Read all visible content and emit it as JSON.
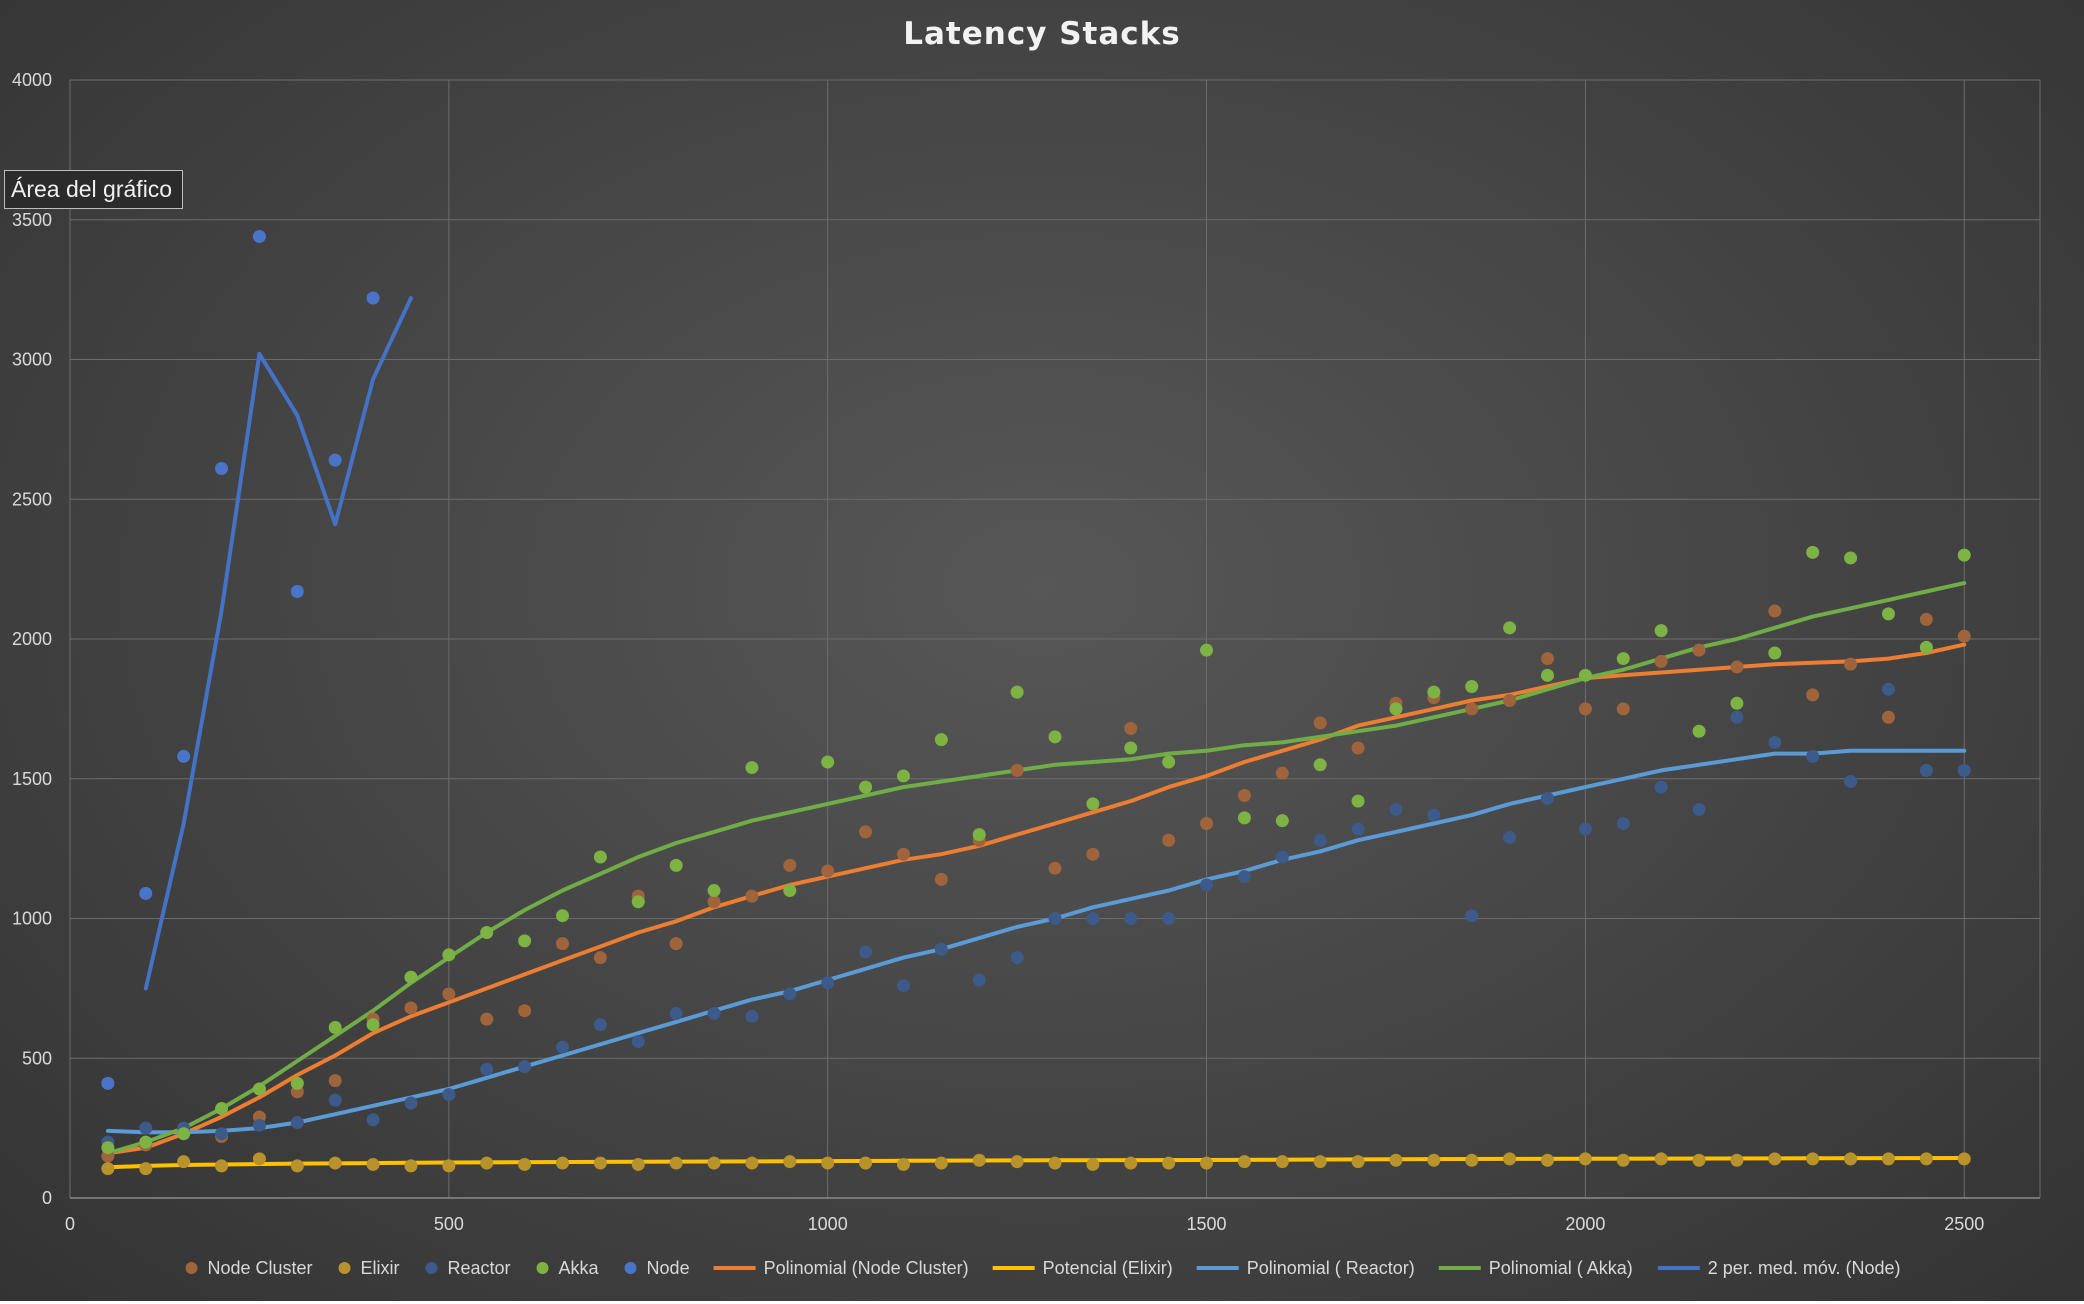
{
  "tooltip": {
    "text": "Área del gráfico"
  },
  "chart_data": {
    "type": "scatter",
    "title": "Latency  Stacks",
    "xlabel": "",
    "ylabel": "",
    "xlim": [
      0,
      2600
    ],
    "ylim": [
      0,
      4000
    ],
    "xticks": [
      0,
      500,
      1000,
      1500,
      2000,
      2500
    ],
    "yticks": [
      0,
      500,
      1000,
      1500,
      2000,
      2500,
      3000,
      3500,
      4000
    ],
    "grid": true,
    "legend_position": "bottom",
    "series": [
      {
        "name": "Node Cluster",
        "kind": "scatter",
        "color": "#a0643c",
        "x": [
          50,
          100,
          150,
          200,
          250,
          300,
          350,
          400,
          450,
          500,
          550,
          600,
          650,
          700,
          750,
          800,
          850,
          900,
          950,
          1000,
          1050,
          1100,
          1150,
          1200,
          1250,
          1300,
          1350,
          1400,
          1450,
          1500,
          1550,
          1600,
          1650,
          1700,
          1750,
          1800,
          1850,
          1900,
          1950,
          2000,
          2050,
          2100,
          2150,
          2200,
          2250,
          2300,
          2350,
          2400,
          2450,
          2500
        ],
        "y": [
          150,
          190,
          230,
          220,
          290,
          380,
          420,
          640,
          680,
          730,
          640,
          670,
          910,
          860,
          1080,
          910,
          1060,
          1080,
          1190,
          1170,
          1310,
          1230,
          1140,
          1280,
          1530,
          1180,
          1230,
          1680,
          1280,
          1340,
          1440,
          1520,
          1700,
          1610,
          1770,
          1790,
          1750,
          1780,
          1930,
          1750,
          1750,
          1920,
          1960,
          1900,
          2100,
          1800,
          1910,
          1720,
          2070,
          2010
        ]
      },
      {
        "name": "Elixir",
        "kind": "scatter",
        "color": "#b8922a",
        "x": [
          50,
          100,
          150,
          200,
          250,
          300,
          350,
          400,
          450,
          500,
          550,
          600,
          650,
          700,
          750,
          800,
          850,
          900,
          950,
          1000,
          1050,
          1100,
          1150,
          1200,
          1250,
          1300,
          1350,
          1400,
          1450,
          1500,
          1550,
          1600,
          1650,
          1700,
          1750,
          1800,
          1850,
          1900,
          1950,
          2000,
          2050,
          2100,
          2150,
          2200,
          2250,
          2300,
          2350,
          2400,
          2450,
          2500
        ],
        "y": [
          105,
          105,
          130,
          115,
          140,
          115,
          125,
          120,
          115,
          115,
          125,
          120,
          125,
          125,
          120,
          125,
          125,
          125,
          130,
          125,
          125,
          120,
          125,
          135,
          130,
          125,
          120,
          125,
          125,
          125,
          130,
          130,
          130,
          130,
          135,
          135,
          135,
          140,
          135,
          140,
          135,
          140,
          135,
          135,
          140,
          140,
          140,
          140,
          140,
          140
        ]
      },
      {
        "name": "Reactor",
        "kind": "scatter",
        "color": "#3c5a8a",
        "x": [
          50,
          100,
          150,
          200,
          250,
          300,
          350,
          400,
          450,
          500,
          550,
          600,
          650,
          700,
          750,
          800,
          850,
          900,
          950,
          1000,
          1050,
          1100,
          1150,
          1200,
          1250,
          1300,
          1350,
          1400,
          1450,
          1500,
          1550,
          1600,
          1650,
          1700,
          1750,
          1800,
          1850,
          1900,
          1950,
          2000,
          2050,
          2100,
          2150,
          2200,
          2250,
          2300,
          2350,
          2400,
          2450,
          2500
        ],
        "y": [
          200,
          250,
          250,
          230,
          260,
          270,
          350,
          280,
          340,
          370,
          460,
          470,
          540,
          620,
          560,
          660,
          660,
          650,
          730,
          770,
          880,
          760,
          890,
          780,
          860,
          1000,
          1000,
          1000,
          1000,
          1120,
          1150,
          1220,
          1280,
          1320,
          1390,
          1370,
          1010,
          1290,
          1430,
          1320,
          1340,
          1470,
          1390,
          1720,
          1630,
          1580,
          1490,
          1820,
          1530,
          1530
        ]
      },
      {
        "name": "Akka",
        "kind": "scatter",
        "color": "#7cb342",
        "x": [
          50,
          100,
          150,
          200,
          250,
          300,
          350,
          400,
          450,
          500,
          550,
          600,
          650,
          700,
          750,
          800,
          850,
          900,
          950,
          1000,
          1050,
          1100,
          1150,
          1200,
          1250,
          1300,
          1350,
          1400,
          1450,
          1500,
          1550,
          1600,
          1650,
          1700,
          1750,
          1800,
          1850,
          1900,
          1950,
          2000,
          2050,
          2100,
          2150,
          2200,
          2250,
          2300,
          2350,
          2400,
          2450,
          2500
        ],
        "y": [
          180,
          200,
          230,
          320,
          390,
          410,
          610,
          620,
          790,
          870,
          950,
          920,
          1010,
          1220,
          1060,
          1190,
          1100,
          1540,
          1100,
          1560,
          1470,
          1510,
          1640,
          1300,
          1810,
          1650,
          1410,
          1610,
          1560,
          1960,
          1360,
          1350,
          1550,
          1420,
          1750,
          1810,
          1830,
          2040,
          1870,
          1870,
          1930,
          2030,
          1670,
          1770,
          1950,
          2310,
          2290,
          2090,
          1970,
          2300
        ]
      },
      {
        "name": "Node",
        "kind": "scatter",
        "color": "#4a74c9",
        "x": [
          50,
          100,
          150,
          200,
          250,
          300,
          350,
          400
        ],
        "y": [
          410,
          1090,
          1580,
          2610,
          3440,
          2170,
          2640,
          3220
        ]
      },
      {
        "name": "Polinomial (Node Cluster)",
        "kind": "line",
        "color": "#ed7d31",
        "x": [
          50,
          100,
          150,
          200,
          250,
          300,
          350,
          400,
          450,
          500,
          550,
          600,
          650,
          700,
          750,
          800,
          850,
          900,
          950,
          1000,
          1050,
          1100,
          1150,
          1200,
          1250,
          1300,
          1350,
          1400,
          1450,
          1500,
          1550,
          1600,
          1650,
          1700,
          1750,
          1800,
          1850,
          1900,
          1950,
          2000,
          2050,
          2100,
          2150,
          2200,
          2250,
          2300,
          2350,
          2400,
          2450,
          2500
        ],
        "y": [
          160,
          180,
          230,
          290,
          360,
          440,
          510,
          590,
          650,
          700,
          750,
          800,
          850,
          900,
          950,
          990,
          1040,
          1080,
          1120,
          1150,
          1180,
          1210,
          1230,
          1260,
          1300,
          1340,
          1380,
          1420,
          1470,
          1510,
          1560,
          1600,
          1640,
          1690,
          1720,
          1750,
          1780,
          1800,
          1830,
          1860,
          1870,
          1880,
          1890,
          1900,
          1910,
          1915,
          1920,
          1930,
          1950,
          1980
        ]
      },
      {
        "name": "Potencial (Elixir)",
        "kind": "line",
        "color": "#ffc000",
        "x": [
          50,
          100,
          150,
          200,
          300,
          400,
          500,
          700,
          900,
          1100,
          1300,
          1500,
          1700,
          1900,
          2100,
          2300,
          2500
        ],
        "y": [
          110,
          115,
          118,
          120,
          123,
          125,
          127,
          129,
          131,
          133,
          135,
          136,
          138,
          140,
          141,
          142,
          143
        ]
      },
      {
        "name": "Polinomial ( Reactor)",
        "kind": "line",
        "color": "#5b9bd5",
        "x": [
          50,
          100,
          150,
          200,
          250,
          300,
          350,
          400,
          450,
          500,
          550,
          600,
          650,
          700,
          750,
          800,
          850,
          900,
          950,
          1000,
          1050,
          1100,
          1150,
          1200,
          1250,
          1300,
          1350,
          1400,
          1450,
          1500,
          1550,
          1600,
          1650,
          1700,
          1750,
          1800,
          1850,
          1900,
          1950,
          2000,
          2050,
          2100,
          2150,
          2200,
          2250,
          2300,
          2350,
          2400,
          2450,
          2500
        ],
        "y": [
          240,
          235,
          235,
          240,
          250,
          270,
          300,
          330,
          360,
          390,
          430,
          470,
          510,
          550,
          590,
          630,
          670,
          710,
          740,
          780,
          820,
          860,
          890,
          930,
          970,
          1000,
          1040,
          1070,
          1100,
          1140,
          1170,
          1210,
          1240,
          1280,
          1310,
          1340,
          1370,
          1410,
          1440,
          1470,
          1500,
          1530,
          1550,
          1570,
          1590,
          1590,
          1600,
          1600,
          1600,
          1600
        ]
      },
      {
        "name": "Polinomial ( Akka)",
        "kind": "line",
        "color": "#70ad47",
        "x": [
          50,
          100,
          150,
          200,
          250,
          300,
          350,
          400,
          450,
          500,
          550,
          600,
          650,
          700,
          750,
          800,
          850,
          900,
          950,
          1000,
          1050,
          1100,
          1150,
          1200,
          1250,
          1300,
          1350,
          1400,
          1450,
          1500,
          1550,
          1600,
          1650,
          1700,
          1750,
          1800,
          1850,
          1900,
          1950,
          2000,
          2050,
          2100,
          2150,
          2200,
          2250,
          2300,
          2350,
          2400,
          2450,
          2500
        ],
        "y": [
          160,
          200,
          250,
          320,
          400,
          490,
          580,
          670,
          770,
          860,
          950,
          1030,
          1100,
          1160,
          1220,
          1270,
          1310,
          1350,
          1380,
          1410,
          1440,
          1470,
          1490,
          1510,
          1530,
          1550,
          1560,
          1570,
          1590,
          1600,
          1620,
          1630,
          1650,
          1670,
          1690,
          1720,
          1750,
          1780,
          1820,
          1860,
          1890,
          1930,
          1970,
          2000,
          2040,
          2080,
          2110,
          2140,
          2170,
          2200
        ]
      },
      {
        "name": "2 per. med. móv. (Node)",
        "kind": "line",
        "color": "#4472c4",
        "x": [
          100,
          150,
          200,
          250,
          300,
          350,
          400,
          450
        ],
        "y": [
          750,
          1340,
          2100,
          3020,
          2800,
          2410,
          2930,
          3220
        ]
      }
    ]
  }
}
